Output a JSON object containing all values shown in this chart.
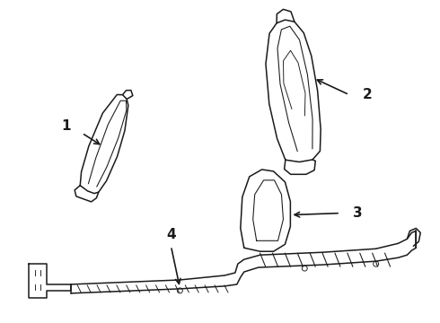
{
  "background_color": "#ffffff",
  "figure_width": 4.9,
  "figure_height": 3.6,
  "dpi": 100,
  "line_color": "#1a1a1a",
  "line_width": 1.1
}
